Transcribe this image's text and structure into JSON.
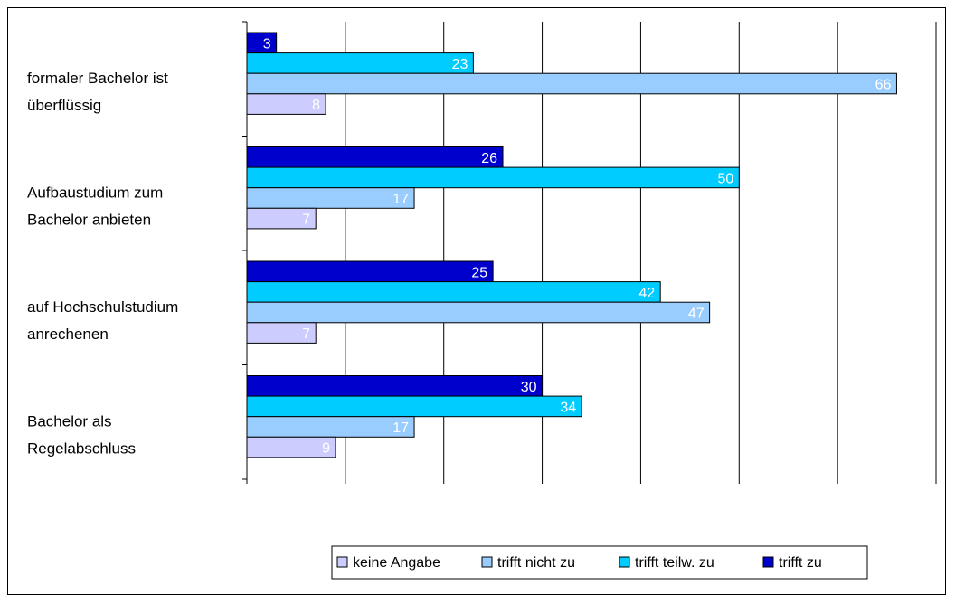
{
  "chart_data": {
    "type": "bar",
    "orientation": "horizontal",
    "categories": [
      "Bachelor als Regelabschluss",
      "auf Hochschulstudium anrechenen",
      "Aufbaustudium zum Bachelor anbieten",
      "formaler Bachelor ist überflüssig"
    ],
    "category_lines": [
      [
        "Bachelor als",
        "Regelabschluss"
      ],
      [
        "auf Hochschulstudium",
        "anrechenen"
      ],
      [
        "Aufbaustudium zum",
        "Bachelor anbieten"
      ],
      [
        "formaler Bachelor ist",
        "überflüssig"
      ]
    ],
    "series": [
      {
        "name": "keine Angabe",
        "color": "#ccccff",
        "values": [
          9,
          7,
          7,
          8
        ]
      },
      {
        "name": "trifft nicht zu",
        "color": "#99ccff",
        "values": [
          17,
          47,
          17,
          66
        ]
      },
      {
        "name": "trifft teilw. zu",
        "color": "#00ccff",
        "values": [
          34,
          42,
          50,
          23
        ]
      },
      {
        "name": "trifft zu",
        "color": "#0000cc",
        "values": [
          30,
          25,
          26,
          3
        ]
      }
    ],
    "xlim": [
      0,
      70
    ],
    "grid": true,
    "legend_position": "bottom-right",
    "title": "",
    "xlabel": "",
    "ylabel": ""
  }
}
